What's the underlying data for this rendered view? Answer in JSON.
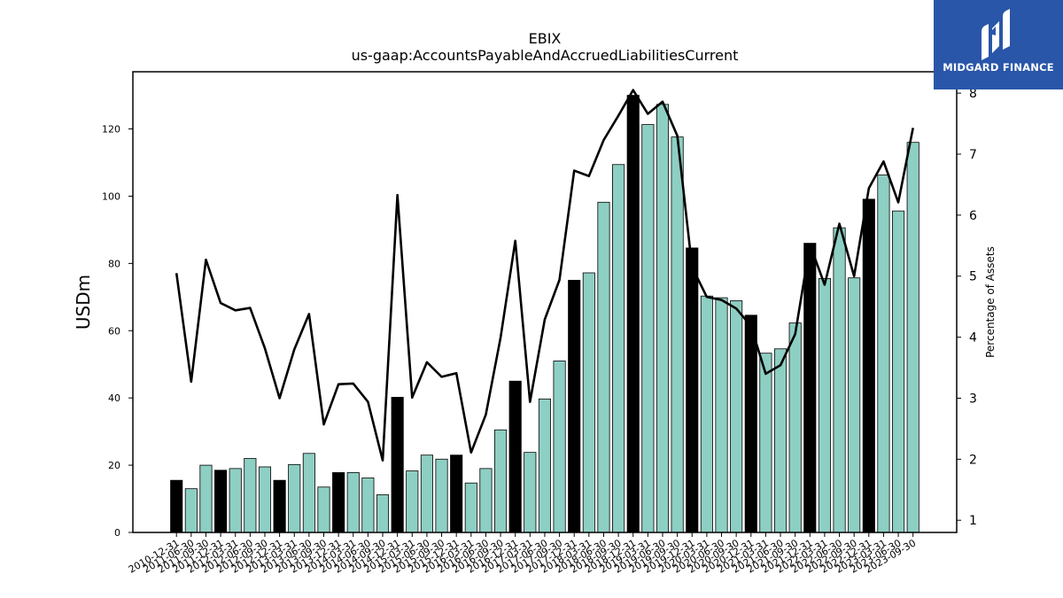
{
  "logo": {
    "brand": "MIDGARD FINANCE"
  },
  "colors": {
    "annual_bar": "#000000",
    "quarter_bar": "#8ecfc3",
    "line": "#000000",
    "logo_bg": "#2a56a9"
  },
  "chart_data": {
    "type": "bar",
    "title": "EBIX",
    "subtitle": "us-gaap:AccountsPayableAndAccruedLiabilitiesCurrent",
    "ylabel": "USDm",
    "y2label": "Percentage of Assets",
    "ylim": [
      0,
      137
    ],
    "y2lim": [
      0.8,
      8.35
    ],
    "yticks": [
      0,
      20,
      40,
      60,
      80,
      100,
      120
    ],
    "y2ticks": [
      1,
      2,
      3,
      4,
      5,
      6,
      7,
      8
    ],
    "categories": [
      "2010-12-31",
      "2011-06-30",
      "2011-09-30",
      "2011-12-31",
      "2012-03-31",
      "2012-06-30",
      "2012-09-30",
      "2012-12-31",
      "2013-03-31",
      "2013-06-30",
      "2013-09-30",
      "2013-12-31",
      "2014-03-31",
      "2014-06-30",
      "2014-09-30",
      "2014-12-31",
      "2015-03-31",
      "2015-06-30",
      "2015-09-30",
      "2015-12-31",
      "2016-03-31",
      "2016-06-30",
      "2016-09-30",
      "2016-12-31",
      "2017-03-31",
      "2017-06-30",
      "2017-09-30",
      "2017-12-31",
      "2018-03-31",
      "2018-06-30",
      "2018-09-30",
      "2018-12-31",
      "2019-03-31",
      "2019-06-30",
      "2019-09-30",
      "2019-12-31",
      "2020-03-31",
      "2020-06-30",
      "2020-09-30",
      "2020-12-31",
      "2021-03-31",
      "2021-06-30",
      "2021-09-30",
      "2021-12-31",
      "2022-03-31",
      "2022-06-30",
      "2022-09-30",
      "2022-12-31",
      "2023-03-31",
      "2023-06-30",
      "2023-09-30"
    ],
    "series": [
      {
        "kind": "bar",
        "values": [
          15.5,
          13,
          20,
          18.5,
          19,
          22,
          19.5,
          15.5,
          20.2,
          23.5,
          13.5,
          17.8,
          17.8,
          16.2,
          11.2,
          40.2,
          18.3,
          23,
          21.8,
          23,
          14.7,
          19,
          30.5,
          45,
          23.8,
          39.7,
          51,
          75,
          77.2,
          98.2,
          109.4,
          130,
          121.3,
          127.3,
          117.6,
          84.6,
          70.3,
          69.8,
          68.9,
          64.6,
          53.3,
          54.6,
          62.3,
          86,
          75.5,
          90.6,
          75.7,
          99.1,
          106.3,
          95.6,
          116
        ]
      },
      {
        "kind": "line",
        "axis": "y2",
        "values": [
          5.05,
          3.27,
          5.27,
          4.56,
          4.44,
          4.48,
          3.82,
          3.0,
          3.8,
          4.38,
          2.57,
          3.23,
          3.24,
          2.94,
          1.98,
          6.33,
          3.01,
          3.59,
          3.35,
          3.41,
          2.11,
          2.73,
          3.99,
          5.58,
          2.94,
          4.29,
          4.94,
          6.73,
          6.64,
          7.23,
          7.63,
          8.05,
          7.66,
          7.86,
          7.3,
          5.15,
          4.66,
          4.61,
          4.47,
          4.18,
          3.4,
          3.54,
          4.05,
          5.52,
          4.86,
          5.86,
          5.0,
          6.44,
          6.88,
          6.21,
          7.43
        ]
      }
    ],
    "annual_indices": [
      0,
      3,
      7,
      11,
      15,
      19,
      23,
      27,
      31,
      35,
      39,
      43,
      47
    ],
    "legend": "none",
    "grid": false
  }
}
